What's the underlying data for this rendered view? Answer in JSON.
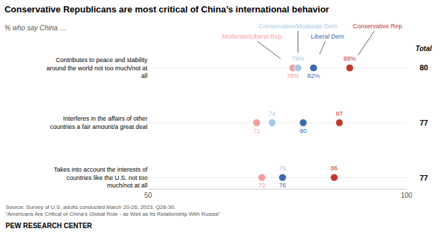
{
  "chart_data": {
    "type": "dot",
    "title": "Conservative Republicans are most critical of China’s international behavior",
    "subtitle": "% who say China …",
    "categories": [
      "Contributes to peace and stability around the world not too much/not at all",
      "Interferes in the affairs of other countries a fair amount/a great deal",
      "Takes into account the interests of countries like the U.S. not too much/not at all"
    ],
    "series": [
      {
        "name": "Moderate/Liberal Rep",
        "color": "#F2A0A0",
        "values": [
          78,
          71,
          72
        ],
        "value_labels": [
          "78%",
          "71",
          "72"
        ]
      },
      {
        "name": "Conservative/Moderate Dem",
        "color": "#A8C8E8",
        "values": [
          79,
          74,
          76
        ],
        "value_labels": [
          "79%",
          "74",
          "76"
        ]
      },
      {
        "name": "Liberal Dem",
        "color": "#3A6BB0",
        "values": [
          82,
          80,
          76
        ],
        "value_labels": [
          "82%",
          "80",
          "76"
        ]
      },
      {
        "name": "Conservative Rep",
        "color": "#C0392B",
        "values": [
          89,
          87,
          86
        ],
        "value_labels": [
          "89%",
          "87",
          "86"
        ]
      }
    ],
    "total": {
      "label": "Total",
      "values": [
        80,
        77,
        77
      ]
    },
    "xlim": [
      50,
      100
    ],
    "xticks": [
      50,
      100
    ],
    "grid": true,
    "data_labels": true,
    "source": "Source: Survey of U.S. adults conducted March 20-26, 2023. Q28-30.\n“Americans Are Critical of China’s Global Role - as Well as Its Relationship With Russia”",
    "footer": "PEW RESEARCH CENTER"
  }
}
